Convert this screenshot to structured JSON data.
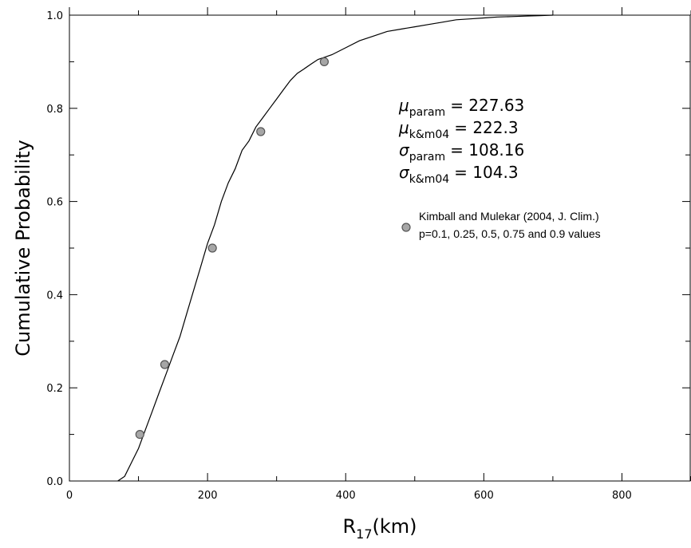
{
  "chart_data": {
    "type": "line",
    "xlabel": {
      "main": "R",
      "sub": "17",
      "rest": "(km)"
    },
    "ylabel": "Cumulative Probability",
    "xlim": [
      0,
      900
    ],
    "ylim": [
      0,
      1.0
    ],
    "xticks": [
      0,
      200,
      400,
      600,
      800
    ],
    "xtick_labels": [
      "0",
      "200",
      "400",
      "600",
      "800"
    ],
    "yticks": [
      0.0,
      0.2,
      0.4,
      0.6,
      0.8,
      1.0
    ],
    "ytick_labels": [
      "0.0",
      "0.2",
      "0.4",
      "0.6",
      "0.8",
      "1.0"
    ],
    "grid": false,
    "series": [
      {
        "kind": "line",
        "color": "#000000",
        "x": [
          70,
          80,
          90,
          100,
          110,
          120,
          130,
          140,
          150,
          160,
          170,
          180,
          190,
          200,
          210,
          220,
          230,
          240,
          250,
          260,
          270,
          280,
          290,
          300,
          310,
          320,
          330,
          340,
          350,
          360,
          370,
          380,
          400,
          420,
          440,
          460,
          480,
          500,
          520,
          540,
          560,
          580,
          600,
          620,
          640,
          660,
          680,
          700
        ],
        "y": [
          0.0,
          0.01,
          0.04,
          0.07,
          0.11,
          0.15,
          0.19,
          0.23,
          0.27,
          0.31,
          0.36,
          0.41,
          0.46,
          0.51,
          0.55,
          0.6,
          0.64,
          0.67,
          0.71,
          0.73,
          0.76,
          0.78,
          0.8,
          0.82,
          0.84,
          0.86,
          0.875,
          0.885,
          0.895,
          0.905,
          0.91,
          0.915,
          0.93,
          0.945,
          0.955,
          0.965,
          0.97,
          0.975,
          0.98,
          0.985,
          0.99,
          0.992,
          0.994,
          0.996,
          0.997,
          0.998,
          0.999,
          1.0
        ]
      },
      {
        "name": "Kimball and Mulekar (2004, J. Clim.)",
        "kind": "scatter",
        "color": "#a6a6a6",
        "x": [
          102,
          138,
          207,
          277,
          369
        ],
        "y": [
          0.1,
          0.25,
          0.5,
          0.75,
          0.9
        ]
      }
    ],
    "annotations": [
      {
        "symbol": "μ",
        "sub": "param",
        "value": "= 227.63"
      },
      {
        "symbol": "μ",
        "sub": "k&m04",
        "value": "= 222.3"
      },
      {
        "symbol": "σ",
        "sub": "param",
        "value": "= 108.16"
      },
      {
        "symbol": "σ",
        "sub": "k&m04",
        "value": "= 104.3"
      }
    ],
    "legend": {
      "position": "right-middle",
      "line1": "Kimball and Mulekar (2004, J. Clim.)",
      "line2": "p=0.1, 0.25, 0.5, 0.75 and 0.9 values"
    }
  }
}
